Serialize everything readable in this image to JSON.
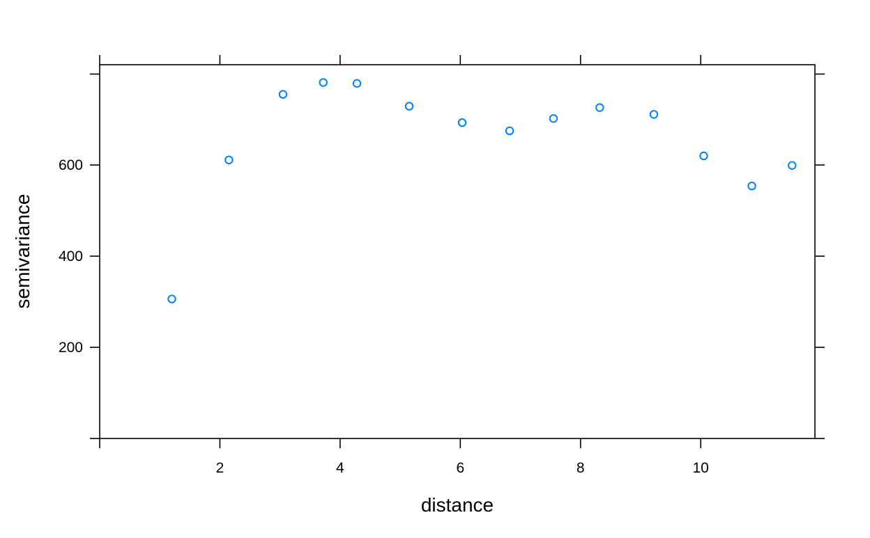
{
  "chart_data": {
    "type": "scatter",
    "title": "",
    "xlabel": "distance",
    "ylabel": "semivariance",
    "xlim": [
      0,
      11.9
    ],
    "ylim": [
      0,
      820
    ],
    "x_ticks": [
      2,
      4,
      6,
      8,
      10
    ],
    "y_ticks": [
      200,
      400,
      600
    ],
    "grid": false,
    "legend": "none",
    "marker": "open-circle",
    "point_color": "#0080ff",
    "axis_color": "#000000",
    "points": [
      {
        "x": 1.2,
        "y": 306
      },
      {
        "x": 2.15,
        "y": 611
      },
      {
        "x": 3.05,
        "y": 755
      },
      {
        "x": 3.72,
        "y": 781
      },
      {
        "x": 4.28,
        "y": 779
      },
      {
        "x": 5.15,
        "y": 729
      },
      {
        "x": 6.03,
        "y": 693
      },
      {
        "x": 6.82,
        "y": 675
      },
      {
        "x": 7.55,
        "y": 702
      },
      {
        "x": 8.32,
        "y": 726
      },
      {
        "x": 9.22,
        "y": 711
      },
      {
        "x": 10.05,
        "y": 620
      },
      {
        "x": 10.85,
        "y": 554
      },
      {
        "x": 11.52,
        "y": 599
      }
    ]
  }
}
